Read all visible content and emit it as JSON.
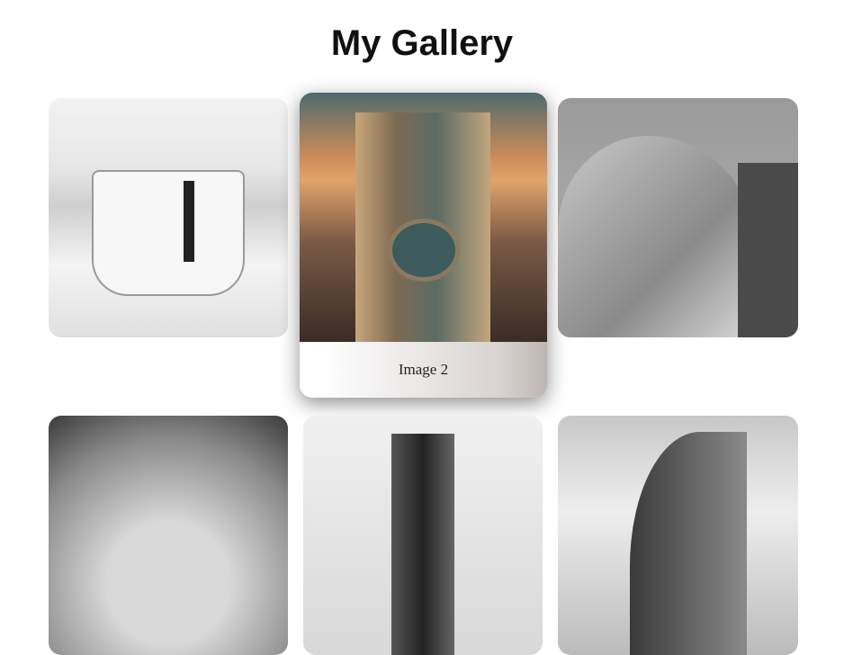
{
  "header": {
    "title": "My Gallery"
  },
  "gallery": {
    "items": [
      {
        "caption": "Image 2"
      }
    ]
  }
}
